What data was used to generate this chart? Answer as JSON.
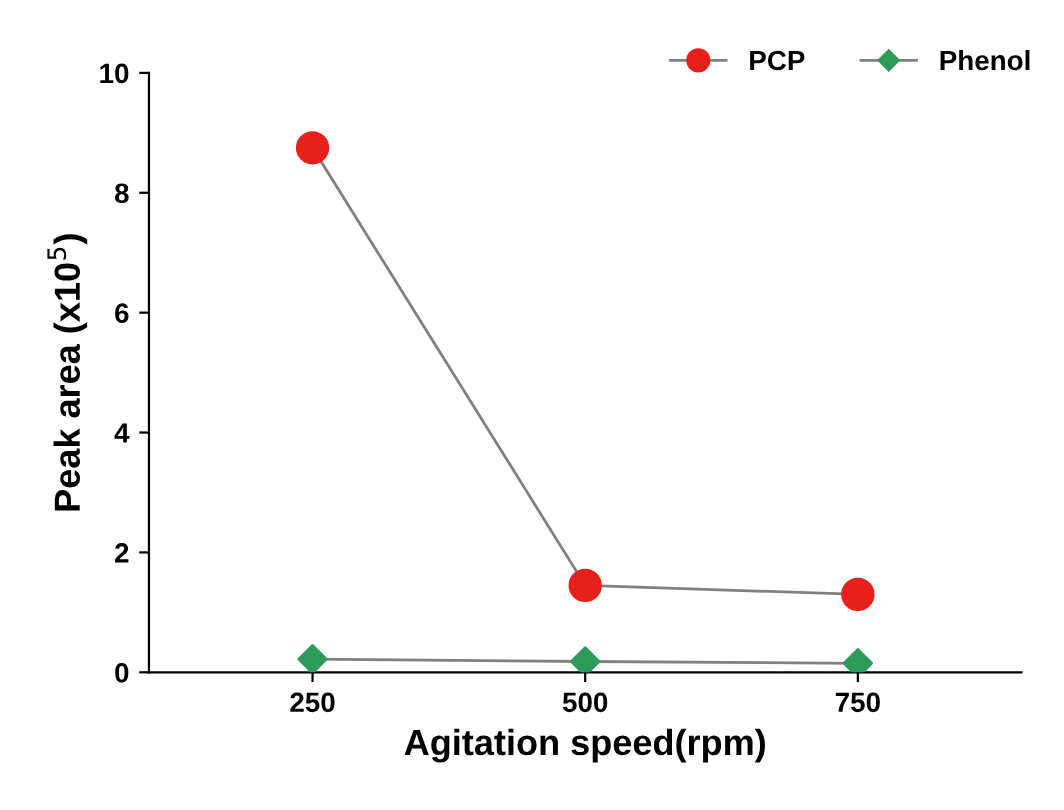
{
  "chart_data": {
    "type": "line",
    "xlabel": "Agitation speed(rpm)",
    "ylabel": "Peak area (x10$^{5}$)",
    "categories": [
      "250",
      "500",
      "750"
    ],
    "series": [
      {
        "name": "PCP",
        "color": "#e8201c",
        "marker": "circle",
        "values": [
          8.75,
          1.45,
          1.3
        ]
      },
      {
        "name": "Phenol",
        "color": "#2e9a5a",
        "marker": "diamond",
        "values": [
          0.22,
          0.18,
          0.15
        ]
      }
    ],
    "ylim": [
      0,
      10
    ],
    "yticks": [
      0,
      2,
      4,
      6,
      8,
      10
    ],
    "grid": false,
    "legend": "top right"
  }
}
